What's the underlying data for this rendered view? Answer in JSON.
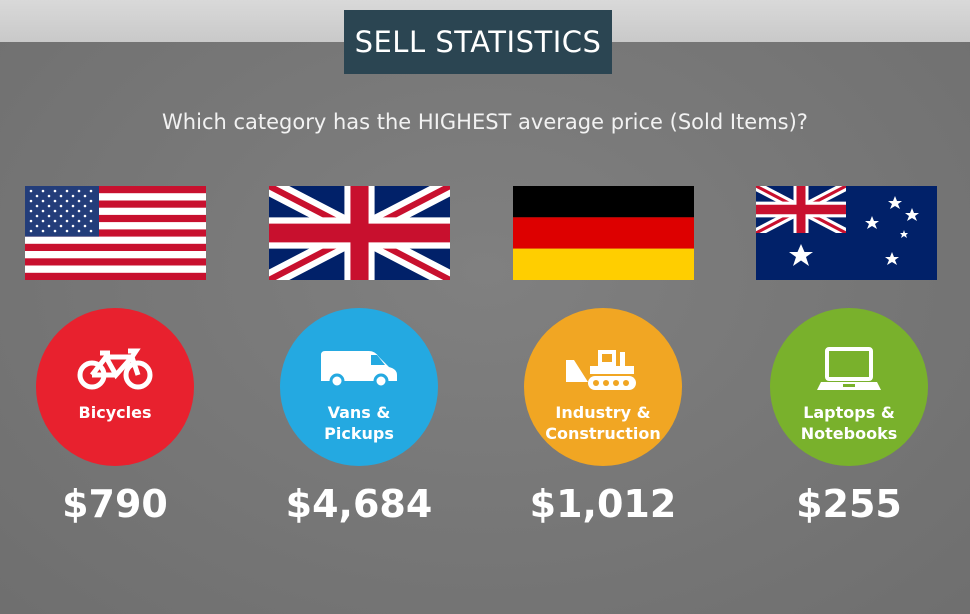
{
  "header": {
    "title": "SELL STATISTICS"
  },
  "question": "Which category has the HIGHEST average price (Sold Items)?",
  "countries": [
    {
      "flag": "usa-flag",
      "category": "Bicycles",
      "category_line2": "",
      "icon": "bicycle-icon",
      "color": "#e8212e",
      "price": "$790"
    },
    {
      "flag": "uk-flag",
      "category": "Vans &",
      "category_line2": "Pickups",
      "icon": "van-icon",
      "color": "#24a9e1",
      "price": "$4,684"
    },
    {
      "flag": "germany-flag",
      "category": "Industry &",
      "category_line2": "Construction",
      "icon": "bulldozer-icon",
      "color": "#f1a623",
      "price": "$1,012"
    },
    {
      "flag": "australia-flag",
      "category": "Laptops &",
      "category_line2": "Notebooks",
      "icon": "laptop-icon",
      "color": "#79b12c",
      "price": "$255"
    }
  ]
}
